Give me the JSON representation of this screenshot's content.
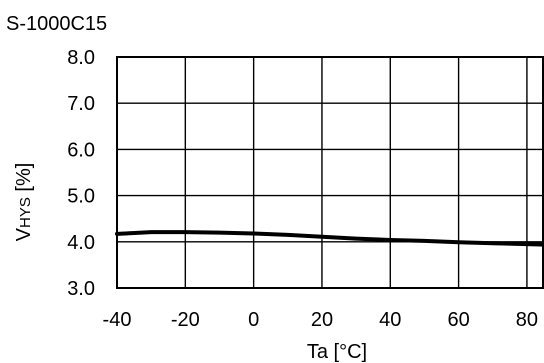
{
  "chart_data": {
    "type": "line",
    "title": "S-1000C15",
    "xlabel": "Ta [°C]",
    "ylabel_main": "V",
    "ylabel_sub": "HYS",
    "ylabel_unit": " [%]",
    "xlim": [
      -40,
      85
    ],
    "ylim": [
      3.0,
      8.0
    ],
    "x_ticks": [
      -40,
      -20,
      0,
      20,
      40,
      60,
      80
    ],
    "x_tick_labels": [
      "-40",
      "-20",
      "0",
      "20",
      "40",
      "60",
      "80"
    ],
    "y_ticks": [
      3.0,
      4.0,
      5.0,
      6.0,
      7.0,
      8.0
    ],
    "y_tick_labels": [
      "3.0",
      "4.0",
      "5.0",
      "6.0",
      "7.0",
      "8.0"
    ],
    "grid": true,
    "series": [
      {
        "x": [
          -40,
          -30,
          -20,
          -10,
          0,
          10,
          20,
          30,
          40,
          50,
          60,
          70,
          80,
          85
        ],
        "y": [
          4.17,
          4.21,
          4.21,
          4.2,
          4.18,
          4.15,
          4.11,
          4.07,
          4.04,
          4.02,
          3.99,
          3.97,
          3.95,
          3.94
        ]
      }
    ]
  }
}
